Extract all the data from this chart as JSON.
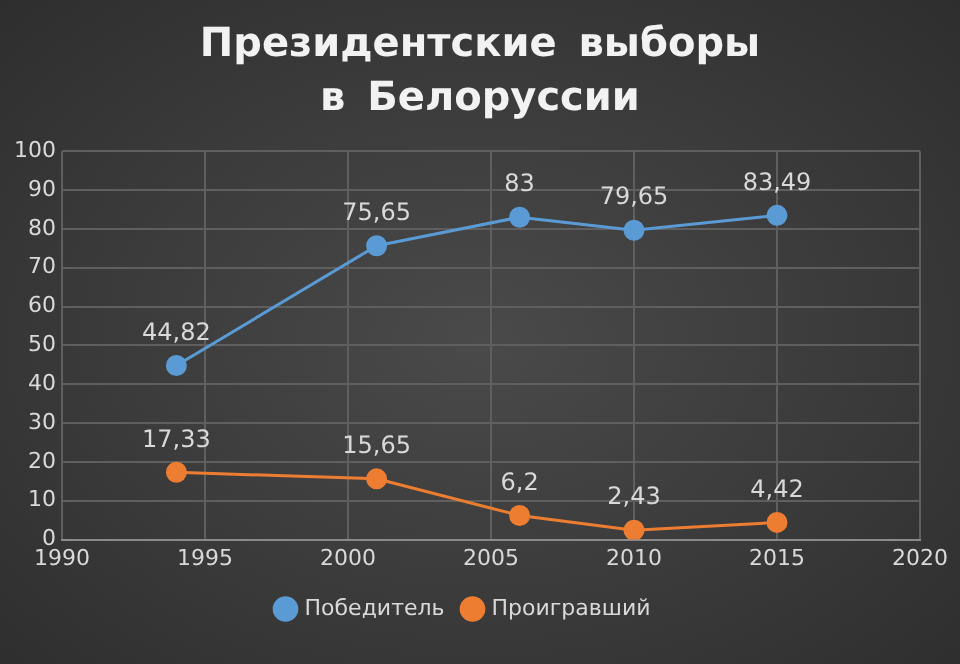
{
  "chart_data": {
    "type": "line",
    "title": "Президентские выборы в Белоруссии",
    "x": [
      1994,
      2001,
      2006,
      2010,
      2015
    ],
    "series": [
      {
        "name": "Победитель",
        "color": "#5b9bd5",
        "values": [
          44.82,
          75.65,
          83,
          79.65,
          83.49
        ],
        "value_labels": [
          "44,82",
          "75,65",
          "83",
          "79,65",
          "83,49"
        ]
      },
      {
        "name": "Проигравший",
        "color": "#ed7d31",
        "values": [
          17.33,
          15.65,
          6.2,
          2.43,
          4.42
        ],
        "value_labels": [
          "17,33",
          "15,65",
          "6,2",
          "2,43",
          "4,42"
        ]
      }
    ],
    "xlim": [
      1990,
      2020
    ],
    "xticks": [
      1990,
      1995,
      2000,
      2005,
      2010,
      2015,
      2020
    ],
    "ylim": [
      0,
      100
    ],
    "yticks": [
      0,
      10,
      20,
      30,
      40,
      50,
      60,
      70,
      80,
      90,
      100
    ],
    "grid": true,
    "legend": "bottom",
    "marker": "circle",
    "line_style": "solid"
  }
}
